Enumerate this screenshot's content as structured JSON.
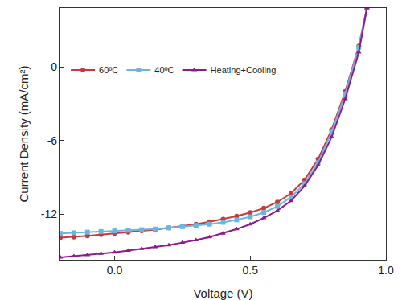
{
  "chart_data": {
    "type": "line",
    "x_label": "Voltage (V)",
    "y_label": "Current Density (mA/cm²)",
    "xlim": [
      -0.2,
      1.0
    ],
    "ylim": [
      -15.7,
      4.8
    ],
    "xticks": [
      {
        "value": 0,
        "label": "0.0"
      },
      0.5,
      {
        "value": 1,
        "label": "1.0"
      }
    ],
    "yticks": [
      -12,
      -6,
      0
    ],
    "grid": false,
    "legend": "top left",
    "x": [
      -0.2,
      -0.15,
      -0.1,
      -0.05,
      0,
      0.05,
      0.1,
      0.15,
      0.2,
      0.25,
      0.3,
      0.35,
      0.4,
      0.45,
      0.5,
      0.55,
      0.6,
      0.65,
      0.7,
      0.75,
      0.8,
      0.85,
      0.9,
      0.93
    ],
    "series": [
      {
        "name": "60ºC",
        "color": "#c8383c",
        "marker": "circle",
        "line_style": "solid",
        "values": [
          -13.9,
          -13.85,
          -13.75,
          -13.65,
          -13.55,
          -13.45,
          -13.35,
          -13.25,
          -13.1,
          -12.95,
          -12.8,
          -12.6,
          -12.4,
          -12.15,
          -11.85,
          -11.5,
          -11.0,
          -10.3,
          -9.2,
          -7.5,
          -5.1,
          -2.0,
          1.7,
          4.8
        ]
      },
      {
        "name": "40ºC",
        "color": "#6ab6e0",
        "marker": "square",
        "line_style": "solid",
        "values": [
          -13.55,
          -13.5,
          -13.45,
          -13.4,
          -13.35,
          -13.3,
          -13.25,
          -13.2,
          -13.1,
          -13.0,
          -12.9,
          -12.8,
          -12.65,
          -12.45,
          -12.2,
          -11.85,
          -11.35,
          -10.6,
          -9.5,
          -7.8,
          -5.3,
          -2.2,
          1.6,
          4.8
        ]
      },
      {
        "name": "Heating+Cooling",
        "color": "#8e1b8e",
        "marker": "triangle-up",
        "line_style": "solid",
        "values": [
          -15.5,
          -15.4,
          -15.3,
          -15.2,
          -15.1,
          -14.95,
          -14.8,
          -14.65,
          -14.5,
          -14.3,
          -14.1,
          -13.85,
          -13.55,
          -13.2,
          -12.8,
          -12.3,
          -11.7,
          -10.9,
          -9.7,
          -8.0,
          -5.7,
          -2.6,
          1.2,
          4.8
        ]
      }
    ]
  }
}
